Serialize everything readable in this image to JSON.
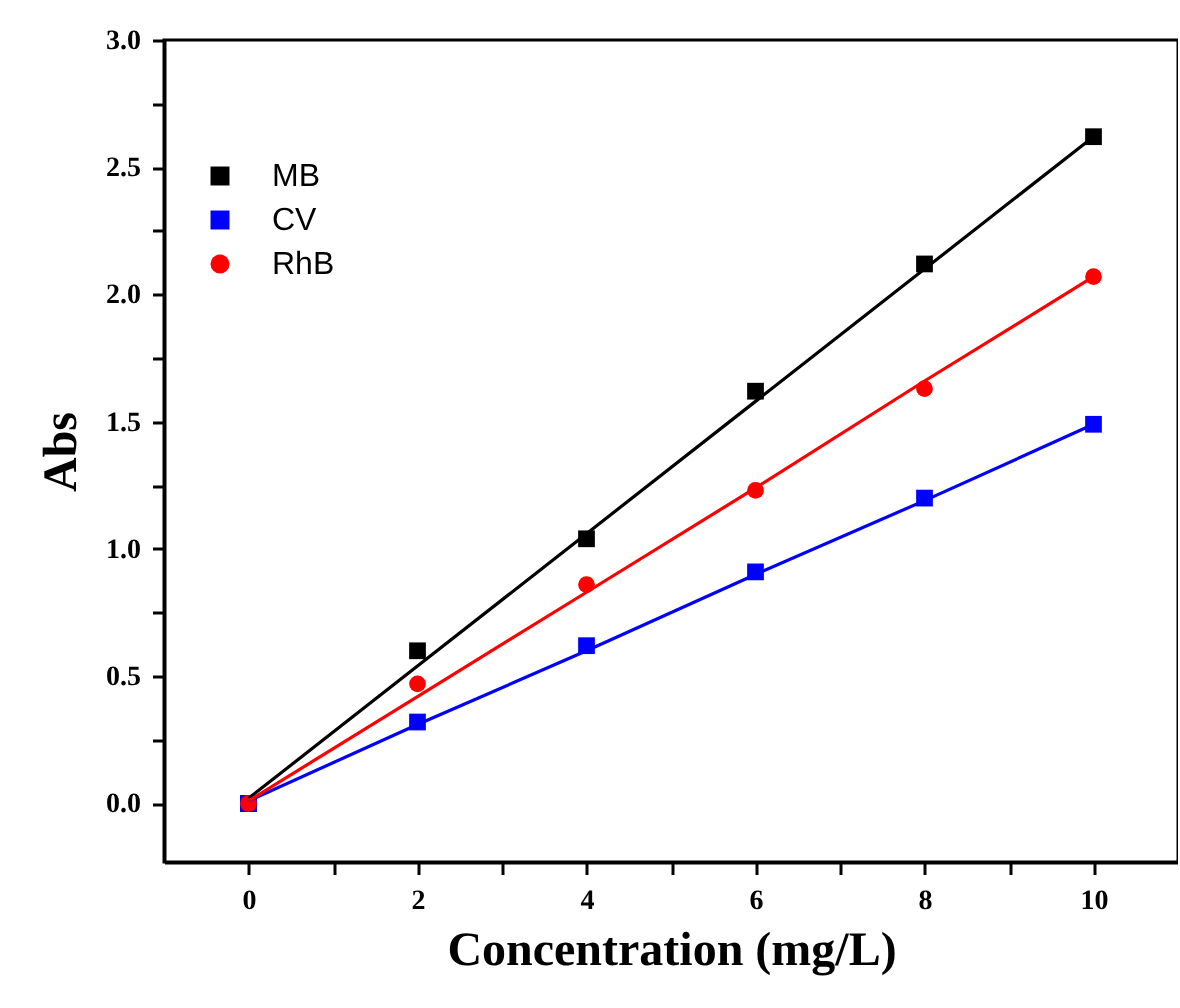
{
  "chart_data": {
    "type": "scatter",
    "xlabel": "Concentration (mg/L)",
    "ylabel": "Abs",
    "xlim": [
      -1,
      11
    ],
    "ylim": [
      -0.23,
      3.0
    ],
    "xticks": [
      0,
      {
        "value": 1,
        "label": null
      },
      2,
      {
        "value": 3,
        "label": null
      },
      4,
      {
        "value": 5,
        "label": null
      },
      6,
      {
        "value": 7,
        "label": null
      },
      8,
      {
        "value": 9,
        "label": null
      },
      10
    ],
    "yticks": [
      {
        "value": 0,
        "label": "0.0"
      },
      {
        "value": 0.25,
        "label": null
      },
      {
        "value": 0.5,
        "label": "0.5"
      },
      {
        "value": 0.75,
        "label": null
      },
      {
        "value": 1,
        "label": "1.0"
      },
      {
        "value": 1.25,
        "label": null
      },
      {
        "value": 1.5,
        "label": "1.5"
      },
      {
        "value": 1.75,
        "label": null
      },
      {
        "value": 2,
        "label": "2.0"
      },
      {
        "value": 2.25,
        "label": null
      },
      {
        "value": 2.5,
        "label": "2.5"
      },
      {
        "value": 2.75,
        "label": null
      },
      {
        "value": 3,
        "label": "3.0"
      }
    ],
    "x": [
      0,
      2,
      4,
      6,
      8,
      10
    ],
    "legend": "top left",
    "grid": false,
    "series": [
      {
        "type": "line",
        "color": "#000000",
        "values": [
          0.02,
          0.54,
          1.06,
          1.58,
          2.1,
          2.62
        ],
        "marker": "none",
        "line_style": "solid"
      },
      {
        "type": "line",
        "color": "#0000ff",
        "values": [
          0.01,
          0.31,
          0.6,
          0.9,
          1.19,
          1.49
        ],
        "marker": "none",
        "line_style": "solid"
      },
      {
        "type": "line",
        "color": "#ff0000",
        "values": [
          0.01,
          0.42,
          0.83,
          1.24,
          1.66,
          2.07
        ],
        "marker": "none",
        "line_style": "solid"
      },
      {
        "name": "MB",
        "color": "#000000",
        "marker": "square",
        "values": [
          0,
          0.6,
          1.04,
          1.62,
          2.12,
          2.62
        ]
      },
      {
        "name": "CV",
        "color": "#0000ff",
        "marker": "square",
        "values": [
          0,
          0.32,
          0.62,
          0.91,
          1.2,
          1.49
        ]
      },
      {
        "name": "RhB",
        "color": "#ff0000",
        "marker": "circle",
        "values": [
          0,
          0.47,
          0.86,
          1.23,
          1.63,
          2.07
        ]
      }
    ]
  }
}
